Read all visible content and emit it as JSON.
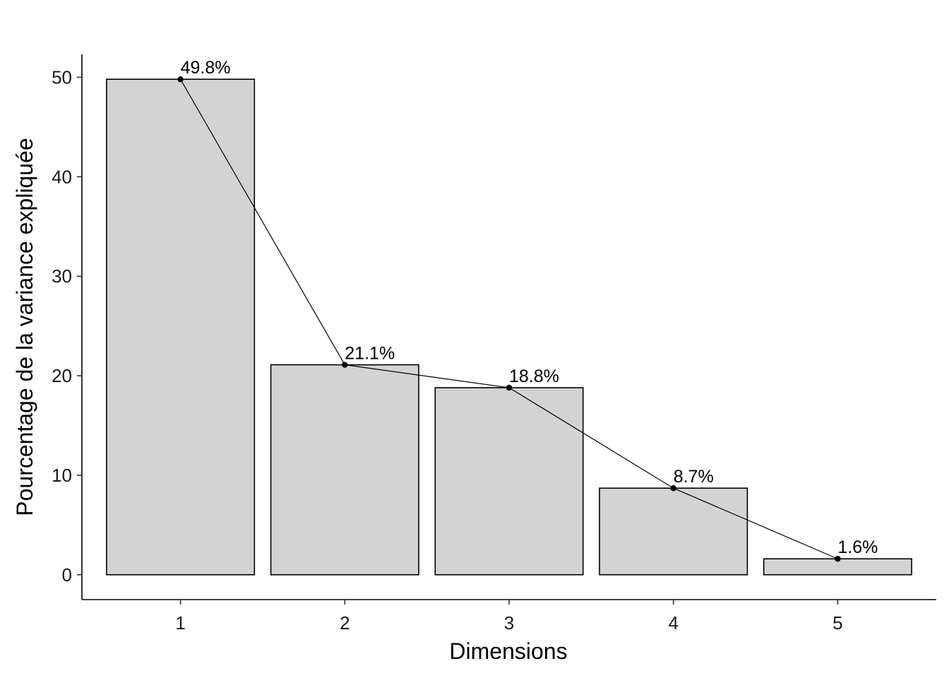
{
  "chart_data": {
    "type": "bar",
    "title": "",
    "xlabel": "Dimensions",
    "ylabel": "Pourcentage de la variance expliquée",
    "categories": [
      "1",
      "2",
      "3",
      "4",
      "5"
    ],
    "values": [
      49.8,
      21.1,
      18.8,
      8.7,
      1.6
    ],
    "data_labels": [
      "49.8%",
      "21.1%",
      "18.8%",
      "8.7%",
      "1.6%"
    ],
    "yticks": [
      0,
      10,
      20,
      30,
      40,
      50
    ],
    "ytick_labels": [
      "0",
      "10",
      "20",
      "30",
      "40",
      "50"
    ],
    "ylim": [
      -2.5,
      52.3
    ],
    "line_overlay": true,
    "grid": false,
    "colors": {
      "bar_fill": "#d3d3d3",
      "bar_stroke": "#000000",
      "line": "#000000",
      "point": "#000000"
    }
  }
}
